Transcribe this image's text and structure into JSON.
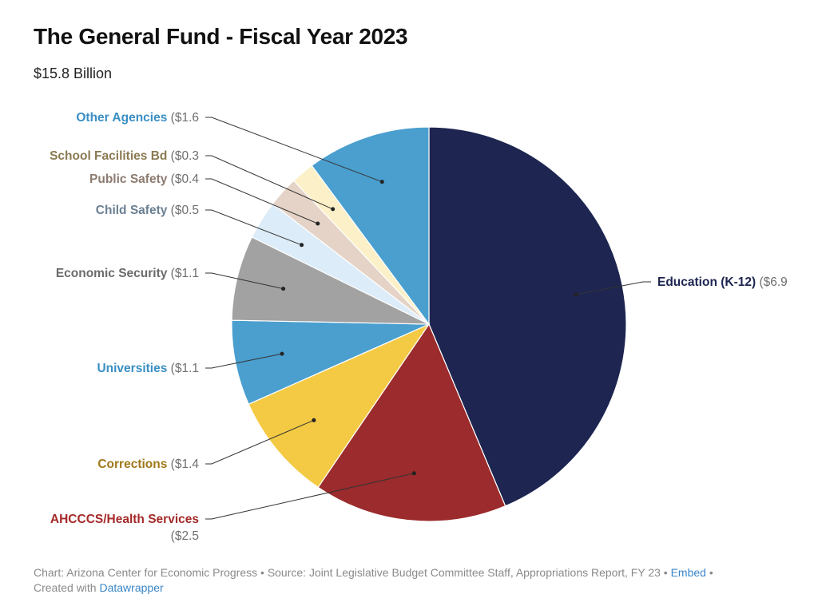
{
  "chart_data": {
    "type": "pie",
    "title": "The General Fund - Fiscal Year 2023",
    "subtitle": "$15.8 Billion",
    "slices": [
      {
        "label": "Education (K-12)",
        "value_text": "($6.9",
        "value": 6.9,
        "color": "#1d2550",
        "label_color": "#1d2550"
      },
      {
        "label": "AHCCCS/Health Services",
        "value_text": "($2.5",
        "value": 2.5,
        "color": "#9b2b2c",
        "label_color": "#a52a2a"
      },
      {
        "label": "Corrections",
        "value_text": "($1.4",
        "value": 1.4,
        "color": "#f4ca44",
        "label_color": "#a0781a"
      },
      {
        "label": "Universities",
        "value_text": "($1.1",
        "value": 1.1,
        "color": "#4a9fcf",
        "label_color": "#3a8fc4"
      },
      {
        "label": "Economic Security",
        "value_text": "($1.1",
        "value": 1.1,
        "color": "#a2a2a2",
        "label_color": "#6b6b6b"
      },
      {
        "label": "Child Safety",
        "value_text": "($0.5",
        "value": 0.5,
        "color": "#dcecf8",
        "label_color": "#6b7f92"
      },
      {
        "label": "Public Safety",
        "value_text": "($0.4",
        "value": 0.4,
        "color": "#e4d3c6",
        "label_color": "#8d7b70"
      },
      {
        "label": "School Facilities Bd",
        "value_text": "($0.3",
        "value": 0.3,
        "color": "#fbf0c8",
        "label_color": "#8a7a52"
      },
      {
        "label": "Other Agencies",
        "value_text": "($1.6",
        "value": 1.6,
        "color": "#4a9fcf",
        "label_color": "#3a8fc4"
      }
    ],
    "value_text_color": "#6f6f6f"
  },
  "footer": {
    "chart_prefix": "Chart: ",
    "chart_credit": "Arizona Center for Economic Progress",
    "separator": " • ",
    "source_prefix": "Source: ",
    "source": "Joint Legislative Budget Committee Staff, Appropriations Report, FY 23",
    "embed_label": "Embed",
    "created_with": "Created with ",
    "datawrapper_label": "Datawrapper"
  }
}
